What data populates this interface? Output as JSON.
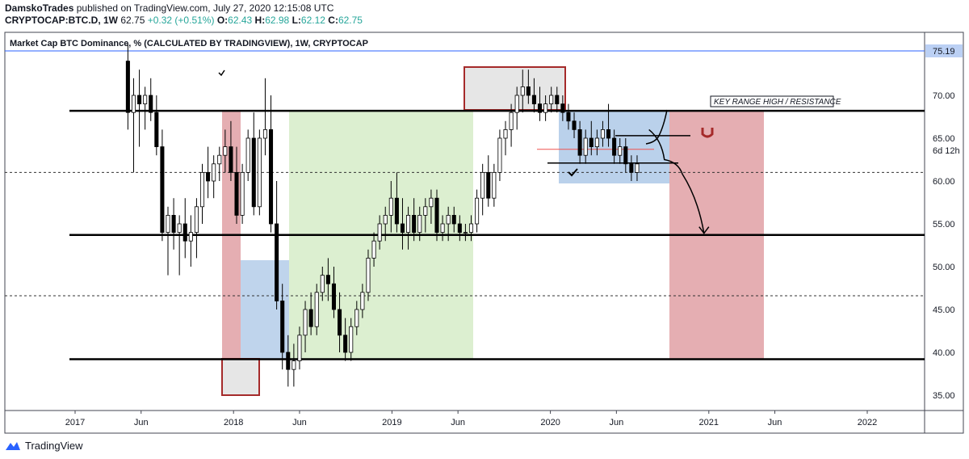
{
  "header": {
    "publisher": "DamskoTrades",
    "published_text": "published on TradingView.com, July 27, 2020 12:15:08 UTC",
    "symbol": "CRYPTOCAP:BTC.D, 1W",
    "last": "62.75",
    "change": "+0.32 (+0.51%)",
    "open_label": "O:",
    "open": "62.43",
    "high_label": "H:",
    "high": "62.98",
    "low_label": "L:",
    "low": "62.12",
    "close_label": "C:",
    "close": "62.75"
  },
  "footer": {
    "brand": "TradingView"
  },
  "colors": {
    "bull": "#ffffff",
    "bear": "#000000",
    "red_zone": "#e0a0a4",
    "green_zone": "#d6ecc8",
    "blue_zone": "#a9c6e6",
    "box_border": "#a52a2a",
    "hline_blue": "#2962ff",
    "hline_red": "#ef5350"
  },
  "chart_data": {
    "type": "candlestick",
    "title": "Market Cap BTC Dominance, % (CALCULATED BY TRADINGVIEW), 1W, CRYPTOCAP",
    "y_ticks": [
      "35.00",
      "40.00",
      "45.00",
      "50.00",
      "55.00",
      "60.00",
      "65.00",
      "70.00"
    ],
    "y_tick_values": [
      35,
      40,
      45,
      50,
      55,
      60,
      65,
      70
    ],
    "ylim": [
      32.5,
      77.5
    ],
    "x_ticks": [
      "2017",
      "Jun",
      "2018",
      "Jun",
      "2019",
      "Jun",
      "2020",
      "Jun",
      "2021",
      "Jun",
      "2022"
    ],
    "x_tick_values": [
      "2017-01",
      "2017-06",
      "2018-01",
      "2018-06",
      "2019-01",
      "2019-06",
      "2020-01",
      "2020-06",
      "2021-01",
      "2021-06",
      "2022-01"
    ],
    "price_labels": [
      {
        "value": 75.19,
        "text": "75.19"
      },
      {
        "value": 63.6,
        "text": "6d 12h"
      }
    ],
    "annotation": "KEY RANGE HIGH / RESISTANCE",
    "levels_solid": [
      68.2,
      53.7,
      39.2
    ],
    "levels_dashed": [
      61.0,
      46.6
    ],
    "series_ohlc_weekly_from": "2017-05",
    "ohlc": [
      [
        74,
        76,
        66,
        68
      ],
      [
        68,
        72,
        61,
        70
      ],
      [
        70,
        73,
        64,
        69
      ],
      [
        69,
        71,
        66,
        70
      ],
      [
        70,
        72,
        67,
        68
      ],
      [
        68,
        70,
        63,
        64
      ],
      [
        64,
        66,
        53,
        54
      ],
      [
        54,
        57,
        49,
        56
      ],
      [
        56,
        58,
        52,
        54
      ],
      [
        54,
        56,
        49,
        55
      ],
      [
        55,
        58,
        51,
        53
      ],
      [
        53,
        56,
        50,
        54
      ],
      [
        54,
        58,
        51,
        57
      ],
      [
        57,
        62,
        55,
        61
      ],
      [
        61,
        64,
        58,
        60
      ],
      [
        60,
        63,
        58,
        62
      ],
      [
        62,
        64,
        60,
        63
      ],
      [
        63,
        66,
        61,
        64
      ],
      [
        64,
        67,
        60,
        61
      ],
      [
        61,
        64,
        55,
        56
      ],
      [
        56,
        62,
        55,
        61
      ],
      [
        61,
        66,
        60,
        65
      ],
      [
        65,
        68,
        56,
        57
      ],
      [
        57,
        66,
        56,
        65
      ],
      [
        65,
        72,
        63,
        66
      ],
      [
        66,
        70,
        54,
        55
      ],
      [
        55,
        60,
        45,
        46
      ],
      [
        46,
        48,
        38,
        40
      ],
      [
        40,
        42,
        36,
        38
      ],
      [
        38,
        41,
        36,
        39
      ],
      [
        39,
        43,
        38,
        42
      ],
      [
        42,
        46,
        40,
        45
      ],
      [
        45,
        47,
        42,
        43
      ],
      [
        43,
        48,
        42,
        47
      ],
      [
        47,
        50,
        46,
        49
      ],
      [
        49,
        51,
        46,
        48
      ],
      [
        48,
        50,
        44,
        45
      ],
      [
        45,
        47,
        40,
        42
      ],
      [
        42,
        44,
        39,
        40
      ],
      [
        40,
        44,
        39,
        43
      ],
      [
        43,
        46,
        42,
        45
      ],
      [
        45,
        48,
        44,
        47
      ],
      [
        47,
        52,
        46,
        51
      ],
      [
        51,
        54,
        50,
        53
      ],
      [
        53,
        56,
        52,
        55
      ],
      [
        55,
        57,
        53,
        56
      ],
      [
        56,
        60,
        54,
        58
      ],
      [
        58,
        61,
        54,
        55
      ],
      [
        55,
        58,
        52,
        54
      ],
      [
        54,
        57,
        52,
        56
      ],
      [
        56,
        58,
        53,
        54
      ],
      [
        54,
        57,
        53,
        56
      ],
      [
        56,
        58,
        54,
        57
      ],
      [
        57,
        59,
        55,
        58
      ],
      [
        58,
        59,
        53,
        54
      ],
      [
        54,
        56,
        53,
        55
      ],
      [
        55,
        57,
        53,
        56
      ],
      [
        56,
        57,
        54,
        55
      ],
      [
        55,
        56,
        53,
        54
      ],
      [
        54,
        55,
        53,
        54
      ],
      [
        54,
        56,
        53,
        55
      ],
      [
        55,
        59,
        54,
        58
      ],
      [
        58,
        62,
        56,
        61
      ],
      [
        61,
        63,
        57,
        58
      ],
      [
        58,
        62,
        57,
        61
      ],
      [
        61,
        66,
        60,
        65
      ],
      [
        65,
        67,
        63,
        66
      ],
      [
        66,
        69,
        64,
        68
      ],
      [
        68,
        71,
        66,
        70
      ],
      [
        70,
        73,
        68,
        71
      ],
      [
        71,
        73,
        69,
        70
      ],
      [
        70,
        72,
        68,
        69
      ],
      [
        69,
        71,
        67,
        68
      ],
      [
        68,
        70,
        67,
        69
      ],
      [
        69,
        71,
        68,
        70
      ],
      [
        70,
        71,
        68,
        69
      ],
      [
        69,
        70,
        67,
        68
      ],
      [
        68,
        69,
        66,
        67
      ],
      [
        67,
        68,
        65,
        66
      ],
      [
        66,
        67,
        62,
        63
      ],
      [
        63,
        66,
        62,
        65
      ],
      [
        65,
        67,
        63,
        64
      ],
      [
        64,
        66,
        63,
        65
      ],
      [
        65,
        67,
        64,
        66
      ],
      [
        66,
        69,
        64,
        65
      ],
      [
        65,
        66,
        62,
        63
      ],
      [
        63,
        65,
        62,
        64
      ],
      [
        64,
        65,
        61,
        62
      ],
      [
        62,
        63,
        60,
        61
      ],
      [
        61,
        63,
        60,
        62
      ]
    ],
    "projection_path": [
      {
        "date": "2020-08-15",
        "value": 66.0
      },
      {
        "date": "2020-09-20",
        "value": 62.5
      },
      {
        "date": "2020-11-01",
        "value": 60.8
      },
      {
        "date": "2020-12-20",
        "value": 53.9
      }
    ]
  }
}
